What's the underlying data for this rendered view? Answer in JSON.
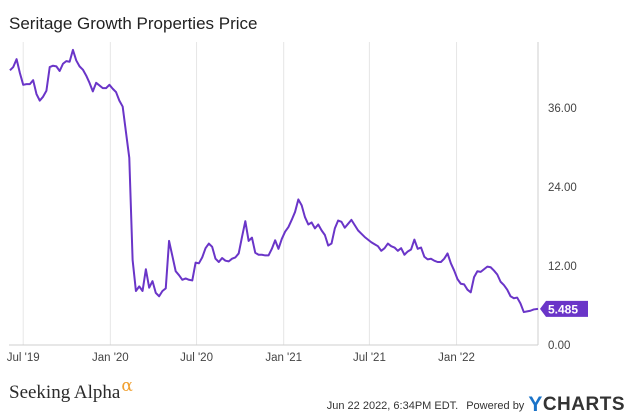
{
  "header": {
    "title": "Seritage Growth Properties Price"
  },
  "chart_data": {
    "type": "line",
    "title": "Seritage Growth Properties Price",
    "xlabel": "",
    "ylabel": "",
    "ylim": [
      0,
      46
    ],
    "grid": {
      "x": true,
      "y": false
    },
    "y_axis_position": "right",
    "y_ticks": [
      "0.00",
      "12.00",
      "24.00",
      "36.00"
    ],
    "x_ticks": [
      "Jul '19",
      "Jan '20",
      "Jul '20",
      "Jan '21",
      "Jul '21",
      "Jan '22"
    ],
    "x_range": [
      "2019-06-01",
      "2022-06-22"
    ],
    "series": [
      {
        "name": "",
        "color": "#6a35c8",
        "points": [
          [
            "2019-06-03",
            41.7
          ],
          [
            "2019-06-10",
            42.2
          ],
          [
            "2019-06-17",
            43.4
          ],
          [
            "2019-06-24",
            41.3
          ],
          [
            "2019-07-01",
            39.5
          ],
          [
            "2019-07-08",
            39.6
          ],
          [
            "2019-07-15",
            39.6
          ],
          [
            "2019-07-22",
            40.2
          ],
          [
            "2019-07-29",
            38.1
          ],
          [
            "2019-08-05",
            37.1
          ],
          [
            "2019-08-12",
            37.7
          ],
          [
            "2019-08-19",
            38.6
          ],
          [
            "2019-08-26",
            42.2
          ],
          [
            "2019-09-02",
            42.4
          ],
          [
            "2019-09-09",
            42.3
          ],
          [
            "2019-09-16",
            41.6
          ],
          [
            "2019-09-23",
            42.7
          ],
          [
            "2019-09-30",
            43.1
          ],
          [
            "2019-10-07",
            43.0
          ],
          [
            "2019-10-14",
            44.8
          ],
          [
            "2019-10-21",
            43.2
          ],
          [
            "2019-10-28",
            42.3
          ],
          [
            "2019-11-04",
            41.8
          ],
          [
            "2019-11-11",
            40.9
          ],
          [
            "2019-11-18",
            39.8
          ],
          [
            "2019-11-25",
            38.5
          ],
          [
            "2019-12-02",
            39.8
          ],
          [
            "2019-12-09",
            39.4
          ],
          [
            "2019-12-16",
            39.0
          ],
          [
            "2019-12-23",
            39.0
          ],
          [
            "2019-12-30",
            39.5
          ],
          [
            "2020-01-06",
            38.9
          ],
          [
            "2020-01-13",
            38.4
          ],
          [
            "2020-01-20",
            37.1
          ],
          [
            "2020-01-27",
            36.2
          ],
          [
            "2020-02-03",
            32.3
          ],
          [
            "2020-02-10",
            28.4
          ],
          [
            "2020-02-17",
            12.9
          ],
          [
            "2020-02-24",
            8.2
          ],
          [
            "2020-03-02",
            8.9
          ],
          [
            "2020-03-09",
            8.2
          ],
          [
            "2020-03-16",
            11.5
          ],
          [
            "2020-03-23",
            8.7
          ],
          [
            "2020-03-30",
            9.7
          ],
          [
            "2020-04-06",
            7.9
          ],
          [
            "2020-04-13",
            7.4
          ],
          [
            "2020-04-20",
            8.2
          ],
          [
            "2020-04-27",
            8.6
          ],
          [
            "2020-05-04",
            15.8
          ],
          [
            "2020-05-11",
            13.5
          ],
          [
            "2020-05-18",
            11.2
          ],
          [
            "2020-05-25",
            10.6
          ],
          [
            "2020-06-01",
            9.9
          ],
          [
            "2020-06-08",
            10.1
          ],
          [
            "2020-06-15",
            9.9
          ],
          [
            "2020-06-22",
            9.8
          ],
          [
            "2020-06-29",
            12.5
          ],
          [
            "2020-07-06",
            12.4
          ],
          [
            "2020-07-13",
            13.3
          ],
          [
            "2020-07-20",
            14.7
          ],
          [
            "2020-07-27",
            15.4
          ],
          [
            "2020-08-03",
            14.9
          ],
          [
            "2020-08-10",
            13.1
          ],
          [
            "2020-08-17",
            12.6
          ],
          [
            "2020-08-24",
            13.2
          ],
          [
            "2020-08-31",
            12.8
          ],
          [
            "2020-09-07",
            12.7
          ],
          [
            "2020-09-14",
            13.1
          ],
          [
            "2020-09-21",
            13.3
          ],
          [
            "2020-09-28",
            13.9
          ],
          [
            "2020-10-05",
            16.4
          ],
          [
            "2020-10-12",
            18.8
          ],
          [
            "2020-10-19",
            15.8
          ],
          [
            "2020-10-26",
            16.3
          ],
          [
            "2020-11-02",
            14.0
          ],
          [
            "2020-11-09",
            13.7
          ],
          [
            "2020-11-16",
            13.7
          ],
          [
            "2020-11-23",
            13.6
          ],
          [
            "2020-11-30",
            13.6
          ],
          [
            "2020-12-07",
            14.6
          ],
          [
            "2020-12-14",
            15.9
          ],
          [
            "2020-12-21",
            14.6
          ],
          [
            "2020-12-28",
            16.1
          ],
          [
            "2021-01-04",
            17.2
          ],
          [
            "2021-01-11",
            17.9
          ],
          [
            "2021-01-18",
            19.0
          ],
          [
            "2021-01-25",
            20.2
          ],
          [
            "2021-02-01",
            22.1
          ],
          [
            "2021-02-08",
            21.2
          ],
          [
            "2021-02-15",
            19.4
          ],
          [
            "2021-02-22",
            18.3
          ],
          [
            "2021-03-01",
            18.6
          ],
          [
            "2021-03-08",
            17.7
          ],
          [
            "2021-03-15",
            18.3
          ],
          [
            "2021-03-22",
            17.4
          ],
          [
            "2021-03-29",
            16.7
          ],
          [
            "2021-04-05",
            15.1
          ],
          [
            "2021-04-12",
            15.4
          ],
          [
            "2021-04-19",
            17.7
          ],
          [
            "2021-04-26",
            18.9
          ],
          [
            "2021-05-03",
            18.7
          ],
          [
            "2021-05-10",
            17.8
          ],
          [
            "2021-05-17",
            18.4
          ],
          [
            "2021-05-24",
            19.0
          ],
          [
            "2021-05-31",
            18.2
          ],
          [
            "2021-06-07",
            17.4
          ],
          [
            "2021-06-14",
            16.9
          ],
          [
            "2021-06-21",
            16.4
          ],
          [
            "2021-06-28",
            16.0
          ],
          [
            "2021-07-05",
            15.6
          ],
          [
            "2021-07-12",
            15.3
          ],
          [
            "2021-07-19",
            15.0
          ],
          [
            "2021-07-26",
            14.3
          ],
          [
            "2021-08-02",
            14.7
          ],
          [
            "2021-08-09",
            15.4
          ],
          [
            "2021-08-16",
            15.0
          ],
          [
            "2021-08-23",
            14.8
          ],
          [
            "2021-08-30",
            14.3
          ],
          [
            "2021-09-06",
            14.7
          ],
          [
            "2021-09-13",
            13.7
          ],
          [
            "2021-09-20",
            14.2
          ],
          [
            "2021-09-27",
            14.5
          ],
          [
            "2021-10-04",
            16.0
          ],
          [
            "2021-10-11",
            14.6
          ],
          [
            "2021-10-18",
            14.8
          ],
          [
            "2021-10-25",
            13.4
          ],
          [
            "2021-11-01",
            13.0
          ],
          [
            "2021-11-08",
            13.1
          ],
          [
            "2021-11-15",
            12.8
          ],
          [
            "2021-11-22",
            12.6
          ],
          [
            "2021-11-29",
            12.6
          ],
          [
            "2021-12-06",
            13.1
          ],
          [
            "2021-12-13",
            13.9
          ],
          [
            "2021-12-20",
            12.4
          ],
          [
            "2021-12-27",
            11.3
          ],
          [
            "2022-01-03",
            10.0
          ],
          [
            "2022-01-10",
            9.3
          ],
          [
            "2022-01-17",
            9.2
          ],
          [
            "2022-01-24",
            8.4
          ],
          [
            "2022-01-31",
            8.0
          ],
          [
            "2022-02-07",
            10.3
          ],
          [
            "2022-02-14",
            11.2
          ],
          [
            "2022-02-21",
            11.1
          ],
          [
            "2022-02-28",
            11.5
          ],
          [
            "2022-03-07",
            11.9
          ],
          [
            "2022-03-14",
            11.8
          ],
          [
            "2022-03-21",
            11.3
          ],
          [
            "2022-03-28",
            10.7
          ],
          [
            "2022-04-04",
            9.6
          ],
          [
            "2022-04-11",
            9.1
          ],
          [
            "2022-04-18",
            8.4
          ],
          [
            "2022-04-25",
            7.4
          ],
          [
            "2022-05-02",
            7.1
          ],
          [
            "2022-05-09",
            7.2
          ],
          [
            "2022-05-16",
            6.3
          ],
          [
            "2022-05-23",
            5.0
          ],
          [
            "2022-05-30",
            5.1
          ],
          [
            "2022-06-06",
            5.2
          ],
          [
            "2022-06-13",
            5.4
          ],
          [
            "2022-06-22",
            5.485
          ]
        ]
      }
    ],
    "last_value_label": "5.485",
    "last_value_color": "#6a35c8"
  },
  "footer": {
    "brand": "Seeking Alpha",
    "brand_glyph": "α",
    "timestamp": "Jun 22 2022, 6:34PM EDT.",
    "powered_by": "Powered by",
    "ycharts_y": "Y",
    "ycharts_rest": "CHARTS"
  }
}
